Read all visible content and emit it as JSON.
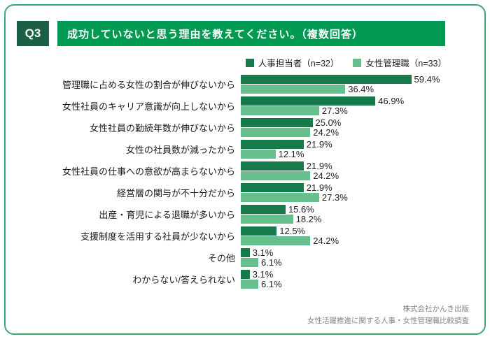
{
  "page": {
    "q_label": "Q3",
    "title": "成功していないと思う理由を教えてください。（複数回答）",
    "footer_line1": "株式会社かんき出版",
    "footer_line2": "女性活躍推進に関する人事・女性管理職比較調査"
  },
  "colors": {
    "border": "#3fa571",
    "q_badge_bg": "#1b5f45",
    "title_bg": "#009a53",
    "series1": "#177a4b",
    "series2": "#68bf8e",
    "text": "#222222",
    "footer_text": "#858585"
  },
  "chart_data": {
    "type": "bar",
    "orientation": "horizontal",
    "title": "成功していないと思う理由を教えてください。（複数回答）",
    "value_suffix": "%",
    "xlim": [
      0,
      62
    ],
    "legend_position": "top-right",
    "grid": false,
    "categories": [
      "管理職に占める女性の割合が伸びないから",
      "女性社員のキャリア意識が向上しないから",
      "女性社員の勤続年数が伸びないから",
      "女性の社員数が減ったから",
      "女性社員の仕事への意欲が高まらないから",
      "経営層の関与が不十分だから",
      "出産・育児による退職が多いから",
      "支援制度を活用する社員が少ないから",
      "その他",
      "わからない/答えられない"
    ],
    "series": [
      {
        "name": "人事担当者（n=32）",
        "color_key": "series1",
        "values": [
          59.4,
          46.9,
          25.0,
          21.9,
          21.9,
          21.9,
          15.6,
          12.5,
          3.1,
          3.1
        ]
      },
      {
        "name": "女性管理職（n=33）",
        "color_key": "series2",
        "values": [
          36.4,
          27.3,
          24.2,
          12.1,
          24.2,
          27.3,
          18.2,
          24.2,
          6.1,
          6.1
        ]
      }
    ]
  }
}
